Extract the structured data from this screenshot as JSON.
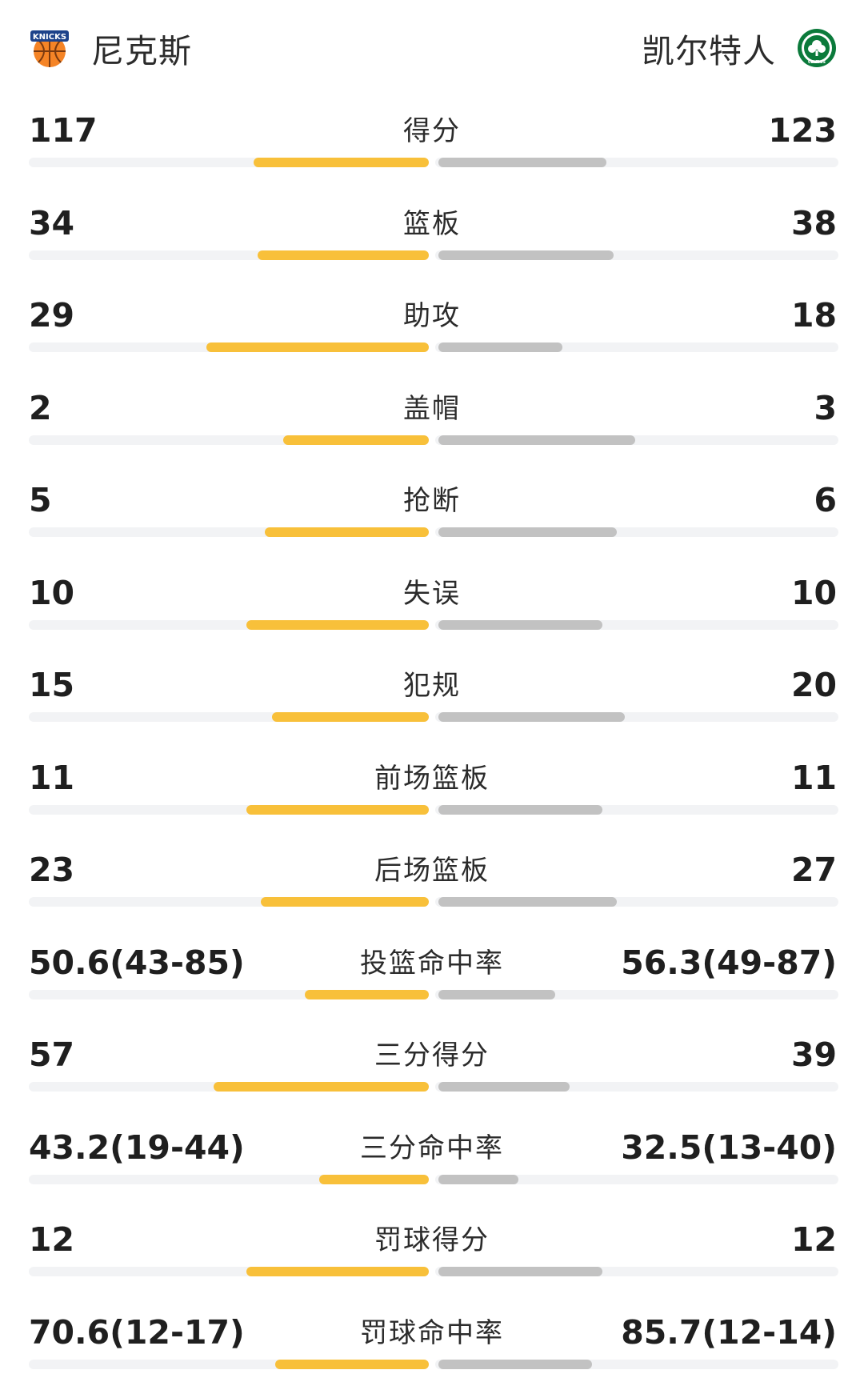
{
  "header": {
    "home_team": "尼克斯",
    "away_team": "凯尔特人",
    "home_logo_text": "KNICKS",
    "away_logo_text": "CELTICS"
  },
  "colors": {
    "home_bar": "#f8c03a",
    "away_bar": "#c2c2c2",
    "track": "#f2f3f5"
  },
  "stats": [
    {
      "label": "得分",
      "home": "117",
      "away": "123",
      "home_bar": 0.48,
      "away_bar": 0.46
    },
    {
      "label": "篮板",
      "home": "34",
      "away": "38",
      "home_bar": 0.47,
      "away_bar": 0.48
    },
    {
      "label": "助攻",
      "home": "29",
      "away": "18",
      "home_bar": 0.61,
      "away_bar": 0.34
    },
    {
      "label": "盖帽",
      "home": "2",
      "away": "3",
      "home_bar": 0.4,
      "away_bar": 0.54
    },
    {
      "label": "抢断",
      "home": "5",
      "away": "6",
      "home_bar": 0.45,
      "away_bar": 0.49
    },
    {
      "label": "失误",
      "home": "10",
      "away": "10",
      "home_bar": 0.5,
      "away_bar": 0.45
    },
    {
      "label": "犯规",
      "home": "15",
      "away": "20",
      "home_bar": 0.43,
      "away_bar": 0.51
    },
    {
      "label": "前场篮板",
      "home": "11",
      "away": "11",
      "home_bar": 0.5,
      "away_bar": 0.45
    },
    {
      "label": "后场篮板",
      "home": "23",
      "away": "27",
      "home_bar": 0.46,
      "away_bar": 0.49
    },
    {
      "label": "投篮命中率",
      "home": "50.6(43-85)",
      "away": "56.3(49-87)",
      "home_bar": 0.34,
      "away_bar": 0.32
    },
    {
      "label": "三分得分",
      "home": "57",
      "away": "39",
      "home_bar": 0.59,
      "away_bar": 0.36
    },
    {
      "label": "三分命中率",
      "home": "43.2(19-44)",
      "away": "32.5(13-40)",
      "home_bar": 0.3,
      "away_bar": 0.22
    },
    {
      "label": "罚球得分",
      "home": "12",
      "away": "12",
      "home_bar": 0.5,
      "away_bar": 0.45
    },
    {
      "label": "罚球命中率",
      "home": "70.6(12-17)",
      "away": "85.7(12-14)",
      "home_bar": 0.42,
      "away_bar": 0.42
    }
  ]
}
